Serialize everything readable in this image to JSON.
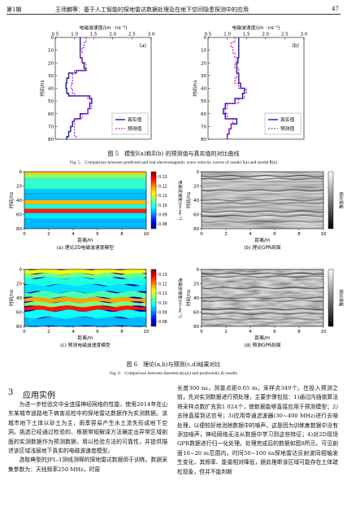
{
  "header": {
    "issue": "第1期",
    "title": "王师麟等：基于人工智能的探地雷达数据处理及在地下空间隐患探测中的应用",
    "page": "47"
  },
  "fig5": {
    "caption_cn": "图 5　模型Ⅰ(a)和Ⅱ(b) 的预测值与真实值的对比曲线",
    "caption_en": "Fig. 5　Comparison between predicted and real electromagnetic wave velocity curves of model Ⅰ(a) and model Ⅱ(b)",
    "x_label": "电磁波速度/(m · ns⁻¹)",
    "y_label": "时间/ns",
    "legend_true": "真实值",
    "legend_pred": "预测值",
    "panel_a": "(a)",
    "panel_b": "(b)"
  },
  "fig6": {
    "caption_cn": "图 6　理论(a,b)与预测(c,d)结果对比",
    "caption_en": "Fig. 6　Comparison between theoretical(a,b) and predicted(c,d) results",
    "sub_a": "(a) 理论2D电磁波速度模型",
    "sub_b": "(b) 理论GPR剖面",
    "sub_c": "(c) 预测电磁波速度模型",
    "sub_d": "(d) 预测GPR剖面",
    "x_label": "距离/m",
    "y_label": "时间/ns",
    "cbar_vel": "电磁波速度/(m·ns⁻¹)",
    "cbar_amp": "相对振幅"
  },
  "section": {
    "number": "3",
    "title": "应用实例"
  },
  "left_col": {
    "p1": "为进一步检验文中全连接神经网络的性能，使用2014年在山东某城市道路地下病害巡检中的探地雷达数据作为实测数据。该城市地下土体以砂土为主，雨季容易产生水土流失形成地下空洞。挑选已经通过检验的、根据常规解译方法确定出异常区域剖面的实测数据作为预测数据，用以检验方法的可靠性，并提供描述该区域浅层地下真实的电磁波速度模型。",
    "p2": "选取典型的JFL-1测线测得的探地雷达数据用于训练。数据采集参数为：天线频率250 MHz，时窗"
  },
  "right_col": {
    "p1": "长度300 ns，测量点距0.05 m，采样点349个。在投入预测之前，先对实测数据进行预处理，主要步骤包括：1)通过内插值算法将采样点数扩充到1 024个，使数据能够直接应用于预测模型；2)去除直接到达信号；3)应用带通滤波器(30~400 MHz)进行去噪处理，以便较好地消除数据中的噪声，这是因为训练集数据中没有添加噪声，神经网络无法从数据中学习到这些特征；4)对2D现场GPR数据进行归一化处理。处理完成后的数据如图8所示。可见剖面10~20 m范围内，时间50~100 ns探地雷达反射波同相轴发生变化，其频率、能量相对降低，据此推断该区域可能存在土体疏松现象，但并不能判断"
  },
  "chart_data": [
    {
      "type": "line",
      "title": "(a)",
      "xlabel": "电磁波速度/(m · ns⁻¹)",
      "ylabel": "时间/ns",
      "xlim": [
        0.5,
        3.0
      ],
      "ylim": [
        80,
        0
      ],
      "xticks": [
        0.5,
        1.0,
        1.5,
        2.0,
        2.5,
        3.0
      ],
      "yticks": [
        0,
        10,
        20,
        30,
        40,
        50,
        60,
        70,
        80
      ],
      "series": [
        {
          "name": "真实值",
          "color": "#1a1aa6",
          "style": "solid",
          "y": [
            0,
            4,
            8,
            12,
            16,
            20,
            24,
            26,
            28,
            32,
            36,
            40,
            44,
            46,
            48,
            52,
            56,
            60,
            64,
            66,
            70,
            74,
            78,
            80
          ],
          "x": [
            1.15,
            1.15,
            1.15,
            1.15,
            1.2,
            1.25,
            1.3,
            1.05,
            0.85,
            0.8,
            0.78,
            0.8,
            0.85,
            1.4,
            1.45,
            1.4,
            1.35,
            1.15,
            1.0,
            0.95,
            0.9,
            0.85,
            0.8,
            0.78
          ]
        },
        {
          "name": "预测值",
          "color": "#c81ec8",
          "style": "dashed",
          "y": [
            0,
            4,
            8,
            12,
            16,
            20,
            24,
            26,
            28,
            32,
            36,
            40,
            44,
            46,
            48,
            52,
            56,
            60,
            64,
            66,
            70,
            74,
            78,
            80
          ],
          "x": [
            1.3,
            1.25,
            1.2,
            1.15,
            1.2,
            1.3,
            1.25,
            1.0,
            0.95,
            0.95,
            0.92,
            0.95,
            1.0,
            1.35,
            1.4,
            1.45,
            1.35,
            1.2,
            1.0,
            1.0,
            1.0,
            1.0,
            1.05,
            1.05
          ]
        }
      ]
    },
    {
      "type": "line",
      "title": "(b)",
      "xlabel": "电磁波速度/(m · ns⁻¹)",
      "ylabel": "时间/ns",
      "xlim": [
        0.5,
        3.0
      ],
      "ylim": [
        80,
        0
      ],
      "xticks": [
        0.5,
        1.0,
        1.5,
        2.0,
        2.5,
        3.0
      ],
      "yticks": [
        0,
        10,
        20,
        30,
        40,
        50,
        60,
        70,
        80
      ],
      "series": [
        {
          "name": "真实值",
          "color": "#1a1aa6",
          "style": "solid",
          "y": [
            0,
            4,
            8,
            12,
            16,
            20,
            24,
            28,
            32,
            36,
            40,
            44,
            48,
            52,
            56,
            60,
            64,
            68,
            72,
            76,
            80
          ],
          "x": [
            1.3,
            1.3,
            1.3,
            1.3,
            1.28,
            1.25,
            1.25,
            1.3,
            1.3,
            1.35,
            1.45,
            1.4,
            1.2,
            0.95,
            0.9,
            0.95,
            1.25,
            1.1,
            1.05,
            1.0,
            1.0
          ]
        },
        {
          "name": "预测值",
          "color": "#c81ec8",
          "style": "dashed",
          "y": [
            0,
            4,
            8,
            12,
            16,
            20,
            24,
            28,
            32,
            36,
            40,
            44,
            48,
            52,
            56,
            60,
            64,
            68,
            72,
            76,
            80
          ],
          "x": [
            1.2,
            1.1,
            1.15,
            1.2,
            1.25,
            1.2,
            1.3,
            1.25,
            1.2,
            1.3,
            1.5,
            1.45,
            1.3,
            1.0,
            0.95,
            1.0,
            1.15,
            1.1,
            1.05,
            1.0,
            1.0
          ]
        }
      ]
    },
    {
      "type": "heatmap",
      "title": "(a) 理论2D电磁波速度模型",
      "xlabel": "距离/m",
      "ylabel": "时间/ns",
      "xlim": [
        0,
        10
      ],
      "ylim": [
        80,
        0
      ],
      "colorbar_label": "电磁波速度/(m·ns⁻¹)",
      "colorbar_ticks": [
        0.08,
        0.09,
        0.1,
        0.11,
        0.12,
        0.13
      ],
      "colorbar_tick_labels": [
        "0.08",
        "0.09",
        "0.10",
        "0.11",
        "0.12",
        "0.13"
      ]
    },
    {
      "type": "heatmap",
      "title": "(b) 理论GPR剖面",
      "xlabel": "距离/m",
      "ylabel": "时间/ns",
      "xlim": [
        0,
        10
      ],
      "ylim": [
        80,
        0
      ],
      "colorbar_label": "相对振幅"
    },
    {
      "type": "heatmap",
      "title": "(c) 预测电磁波速度模型",
      "xlabel": "距离/m",
      "ylabel": "时间/ns",
      "xlim": [
        0,
        10
      ],
      "ylim": [
        80,
        0
      ],
      "colorbar_label": "电磁波速度/(m·ns⁻¹)",
      "colorbar_ticks": [
        0.08,
        0.09,
        0.1,
        0.11,
        0.12,
        0.13
      ],
      "colorbar_tick_labels": [
        "0.08",
        "0.09",
        "0.10",
        "0.11",
        "0.12",
        "0.13"
      ]
    },
    {
      "type": "heatmap",
      "title": "(d) 预测GPR剖面",
      "xlabel": "距离/m",
      "ylabel": "时间/ns",
      "xlim": [
        0,
        10
      ],
      "ylim": [
        80,
        0
      ],
      "colorbar_label": "相对振幅"
    }
  ]
}
